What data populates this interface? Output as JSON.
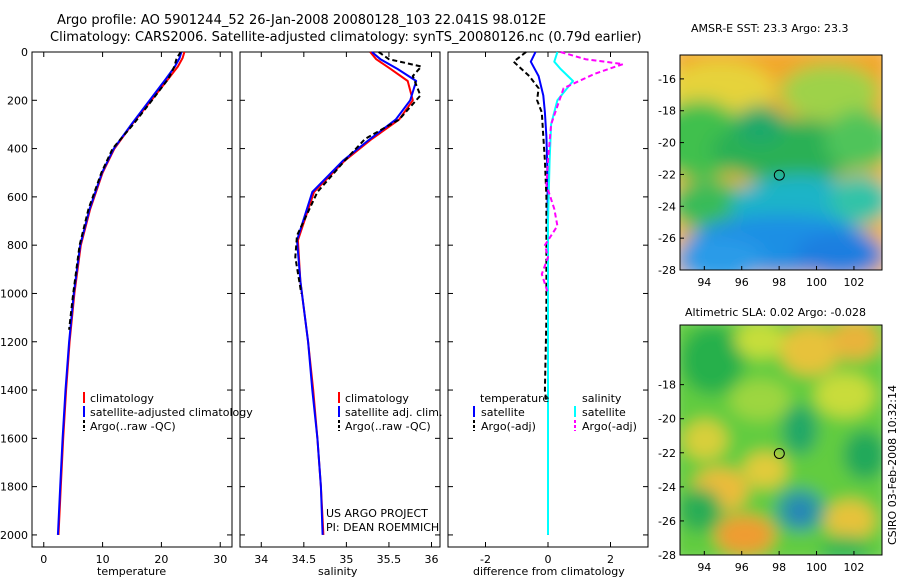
{
  "title_line1": "Argo profile: AO 5901244_52 26-Jan-2008 20080128_103 22.041S 98.012E",
  "title_line2": "Climatology: CARS2006. Satellite-adjusted climatology: synTS_20080126.nc (0.79d earlier)",
  "side_label": "CSIRO 03-Feb-2008 10:32:14",
  "colors": {
    "climatology": "#ff0000",
    "satellite": "#0000ff",
    "argo": "#000000",
    "temp_diff_sat": "#0000ff",
    "sal_diff_sat": "#00ffff",
    "sal_diff_argo": "#ff00ff"
  },
  "chart_data": [
    {
      "type": "line",
      "name": "temperature-profile",
      "xlabel": "temperature",
      "xlim": [
        -2,
        32
      ],
      "ylim": [
        0,
        2050
      ],
      "y_reversed": true,
      "xticks": [
        0,
        10,
        20,
        30
      ],
      "yticks": [
        0,
        200,
        400,
        600,
        800,
        1000,
        1200,
        1400,
        1600,
        1800,
        2000
      ],
      "legend": [
        "climatology",
        "satellite-adjusted climatology",
        "Argo(..raw -QC)"
      ],
      "series": [
        {
          "key": "climatology",
          "x": [
            23.9,
            23.6,
            22.8,
            21.2,
            18.3,
            15.0,
            12.0,
            10.0,
            7.9,
            6.3,
            5.2,
            4.4,
            3.8,
            3.3,
            2.9,
            2.5
          ],
          "y": [
            0,
            25,
            60,
            110,
            200,
            300,
            400,
            500,
            650,
            800,
            1000,
            1200,
            1400,
            1600,
            1800,
            2000
          ]
        },
        {
          "key": "satellite",
          "x": [
            23.4,
            23.1,
            22.3,
            20.8,
            18.0,
            14.9,
            11.9,
            9.9,
            7.8,
            6.2,
            5.1,
            4.3,
            3.7,
            3.2,
            2.8,
            2.4
          ],
          "y": [
            0,
            25,
            60,
            110,
            200,
            300,
            400,
            500,
            650,
            800,
            1000,
            1200,
            1400,
            1600,
            1800,
            2000
          ]
        },
        {
          "key": "argo",
          "x": [
            23.3,
            22.6,
            22.2,
            21.2,
            18.4,
            15.2,
            11.7,
            9.8,
            7.6,
            6.1,
            5.0,
            4.3
          ],
          "y": [
            0,
            25,
            60,
            110,
            200,
            300,
            400,
            500,
            650,
            800,
            1000,
            1150
          ]
        }
      ]
    },
    {
      "type": "line",
      "name": "salinity-profile",
      "xlabel": "salinity",
      "xlim": [
        33.75,
        36.1
      ],
      "ylim": [
        0,
        2050
      ],
      "y_reversed": true,
      "xticks": [
        34,
        34.5,
        35,
        35.5,
        36
      ],
      "yticks": [
        0,
        200,
        400,
        600,
        800,
        1000,
        1200,
        1400,
        1600,
        1800,
        2000
      ],
      "legend": [
        "climatology",
        "satellite adj. clim.",
        "Argo(..raw -QC)"
      ],
      "annotation": [
        "US ARGO PROJECT",
        "PI: DEAN ROEMMICH"
      ],
      "series": [
        {
          "key": "climatology",
          "x": [
            35.28,
            35.35,
            35.52,
            35.72,
            35.78,
            35.62,
            35.3,
            34.98,
            34.62,
            34.43,
            34.46,
            34.55,
            34.61,
            34.66,
            34.7,
            34.73
          ],
          "y": [
            0,
            30,
            70,
            120,
            200,
            280,
            360,
            450,
            580,
            780,
            950,
            1200,
            1400,
            1600,
            1800,
            2000
          ]
        },
        {
          "key": "satellite",
          "x": [
            35.3,
            35.4,
            35.6,
            35.82,
            35.75,
            35.58,
            35.28,
            34.96,
            34.6,
            34.42,
            34.46,
            34.55,
            34.6,
            34.66,
            34.7,
            34.72
          ],
          "y": [
            0,
            30,
            70,
            120,
            200,
            280,
            360,
            450,
            580,
            780,
            950,
            1200,
            1400,
            1600,
            1800,
            2000
          ]
        },
        {
          "key": "argo",
          "x": [
            35.38,
            35.5,
            35.88,
            35.78,
            35.87,
            35.62,
            35.22,
            34.98,
            34.66,
            34.42,
            34.4,
            34.47
          ],
          "y": [
            0,
            30,
            60,
            100,
            180,
            280,
            360,
            450,
            580,
            760,
            850,
            1000
          ]
        }
      ]
    },
    {
      "type": "line",
      "name": "difference-profile",
      "xlabel": "difference from climatology",
      "xlim": [
        -3.2,
        3.2
      ],
      "ylim": [
        0,
        2050
      ],
      "y_reversed": true,
      "xticks": [
        -2,
        0,
        2
      ],
      "yticks": [
        0,
        200,
        400,
        600,
        800,
        1000,
        1200,
        1400,
        1600,
        1800,
        2000
      ],
      "legend_left": {
        "title": "temperature",
        "items": [
          "satellite",
          "Argo(-adj)"
        ]
      },
      "legend_right": {
        "title": "salinity",
        "items": [
          "satellite",
          "Argo(-adj)"
        ]
      },
      "series": [
        {
          "key": "temp_diff_sat",
          "x": [
            -0.4,
            -0.55,
            -0.3,
            -0.15,
            -0.1,
            -0.05,
            -0.02,
            0.0,
            0.0,
            0.0
          ],
          "y": [
            0,
            40,
            100,
            180,
            250,
            350,
            500,
            800,
            1200,
            2000
          ]
        },
        {
          "key": "temp_diff_argo",
          "x": [
            -0.7,
            -1.1,
            -0.6,
            -0.3,
            -0.35,
            -0.2,
            -0.15,
            -0.1,
            -0.05,
            -0.05,
            -0.05,
            -0.05,
            -0.1,
            -0.05
          ],
          "y": [
            0,
            40,
            100,
            150,
            200,
            250,
            350,
            450,
            600,
            750,
            900,
            1100,
            1400,
            1450
          ]
        },
        {
          "key": "sal_diff_sat",
          "x": [
            0.3,
            0.2,
            0.4,
            0.8,
            0.3,
            0.1,
            0.05,
            0.0,
            0.0,
            0.0
          ],
          "y": [
            0,
            40,
            70,
            120,
            200,
            300,
            450,
            700,
            1200,
            2000
          ]
        },
        {
          "key": "sal_diff_argo",
          "x": [
            0.4,
            1.2,
            2.4,
            1.5,
            0.5,
            0.1,
            0.0,
            -0.05,
            0.2,
            0.3,
            -0.1,
            0.0,
            -0.2,
            0.0
          ],
          "y": [
            0,
            30,
            50,
            90,
            150,
            300,
            450,
            550,
            650,
            720,
            800,
            850,
            920,
            1000
          ]
        }
      ]
    },
    {
      "type": "heatmap",
      "name": "amsr-sst-map",
      "title": "AMSR-E SST: 23.3 Argo: 23.3",
      "xlim": [
        92.7,
        103.5
      ],
      "ylim": [
        -28,
        -14.5
      ],
      "xticks": [
        94,
        96,
        98,
        100,
        102
      ],
      "yticks": [
        -16,
        -18,
        -20,
        -22,
        -24,
        -26,
        -28
      ],
      "marker": {
        "lon": 98.01,
        "lat": -22.04
      }
    },
    {
      "type": "heatmap",
      "name": "altimetric-sla-map",
      "title": "Altimetric SLA: 0.02 Argo: -0.028",
      "xlim": [
        92.7,
        103.5
      ],
      "ylim": [
        -28,
        -14.5
      ],
      "xticks": [
        94,
        96,
        98,
        100,
        102
      ],
      "yticks": [
        -18,
        -20,
        -22,
        -24,
        -26,
        -28
      ],
      "marker": {
        "lon": 98.01,
        "lat": -22.04
      }
    }
  ]
}
